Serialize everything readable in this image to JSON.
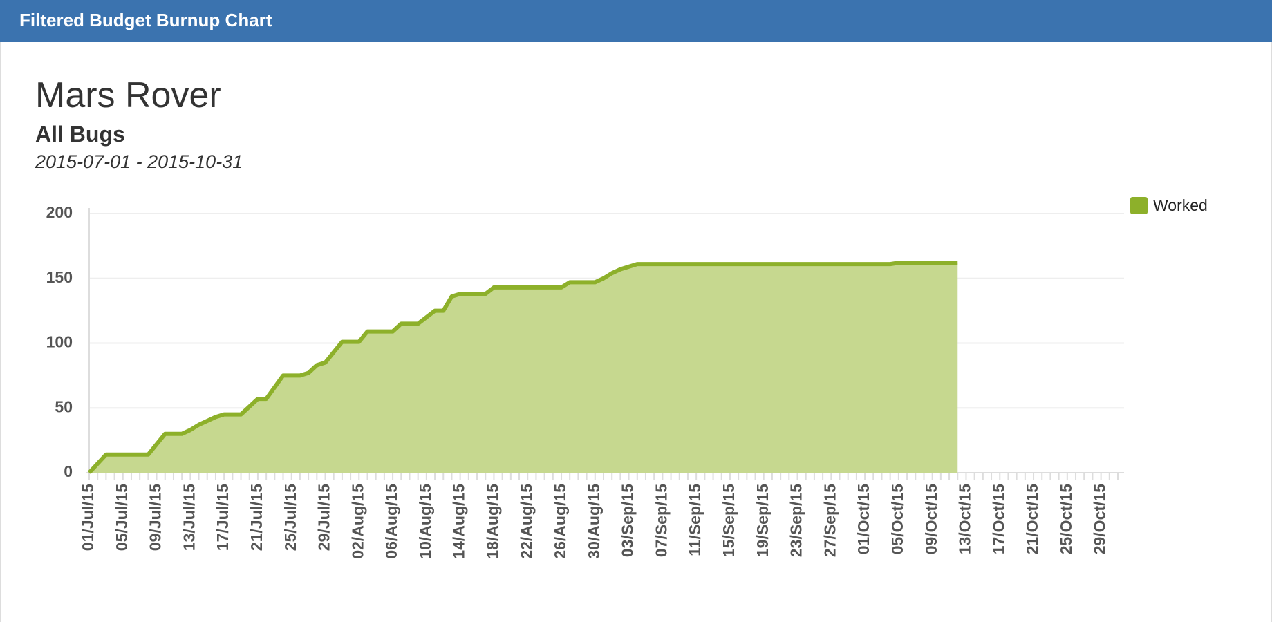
{
  "header": {
    "title": "Filtered Budget Burnup Chart"
  },
  "chart_data": {
    "type": "area",
    "title": "Mars Rover",
    "subtitle": "All Bugs",
    "date_range": "2015-07-01 - 2015-10-31",
    "categories": [
      "01/Jul/15",
      null,
      null,
      null,
      "05/Jul/15",
      null,
      null,
      null,
      "09/Jul/15",
      null,
      null,
      null,
      "13/Jul/15",
      null,
      null,
      null,
      "17/Jul/15",
      null,
      null,
      null,
      "21/Jul/15",
      null,
      null,
      null,
      "25/Jul/15",
      null,
      null,
      null,
      "29/Jul/15",
      null,
      null,
      null,
      "02/Aug/15",
      null,
      null,
      null,
      "06/Aug/15",
      null,
      null,
      null,
      "10/Aug/15",
      null,
      null,
      null,
      "14/Aug/15",
      null,
      null,
      null,
      "18/Aug/15",
      null,
      null,
      null,
      "22/Aug/15",
      null,
      null,
      null,
      "26/Aug/15",
      null,
      null,
      null,
      "30/Aug/15",
      null,
      null,
      null,
      "03/Sep/15",
      null,
      null,
      null,
      "07/Sep/15",
      null,
      null,
      null,
      "11/Sep/15",
      null,
      null,
      null,
      "15/Sep/15",
      null,
      null,
      null,
      "19/Sep/15",
      null,
      null,
      null,
      "23/Sep/15",
      null,
      null,
      null,
      "27/Sep/15",
      null,
      null,
      null,
      "01/Oct/15",
      null,
      null,
      null,
      "05/Oct/15",
      null,
      null,
      null,
      "09/Oct/15",
      null,
      null,
      null,
      "13/Oct/15",
      null,
      null,
      null,
      "17/Oct/15",
      null,
      null,
      null,
      "21/Oct/15",
      null,
      null,
      null,
      "25/Oct/15",
      null,
      null,
      null,
      "29/Oct/15",
      null,
      null
    ],
    "series": [
      {
        "name": "Worked",
        "color": "#8db02a",
        "fill": "#c6d88f",
        "values": [
          0,
          7,
          14,
          14,
          14,
          14,
          14,
          14,
          22,
          30,
          30,
          30,
          33,
          37,
          40,
          43,
          45,
          45,
          45,
          51,
          57,
          57,
          66,
          75,
          75,
          75,
          77,
          83,
          85,
          93,
          101,
          101,
          101,
          109,
          109,
          109,
          109,
          115,
          115,
          115,
          120,
          125,
          125,
          136,
          138,
          138,
          138,
          138,
          143,
          143,
          143,
          143,
          143,
          143,
          143,
          143,
          143,
          147,
          147,
          147,
          147,
          150,
          154,
          157,
          159,
          161,
          161,
          161,
          161,
          161,
          161,
          161,
          161,
          161,
          161,
          161,
          161,
          161,
          161,
          161,
          161,
          161,
          161,
          161,
          161,
          161,
          161,
          161,
          161,
          161,
          161,
          161,
          161,
          161,
          161,
          161,
          162,
          162,
          162,
          162,
          162,
          162,
          162,
          162,
          null,
          null,
          null,
          null,
          null,
          null,
          null,
          null,
          null,
          null,
          null,
          null,
          null,
          null,
          null,
          null,
          null,
          null,
          null
        ]
      }
    ],
    "ylim": [
      0,
      200
    ],
    "yticks": [
      0,
      50,
      100,
      150,
      200
    ],
    "grid": true,
    "legend": "top-right"
  }
}
